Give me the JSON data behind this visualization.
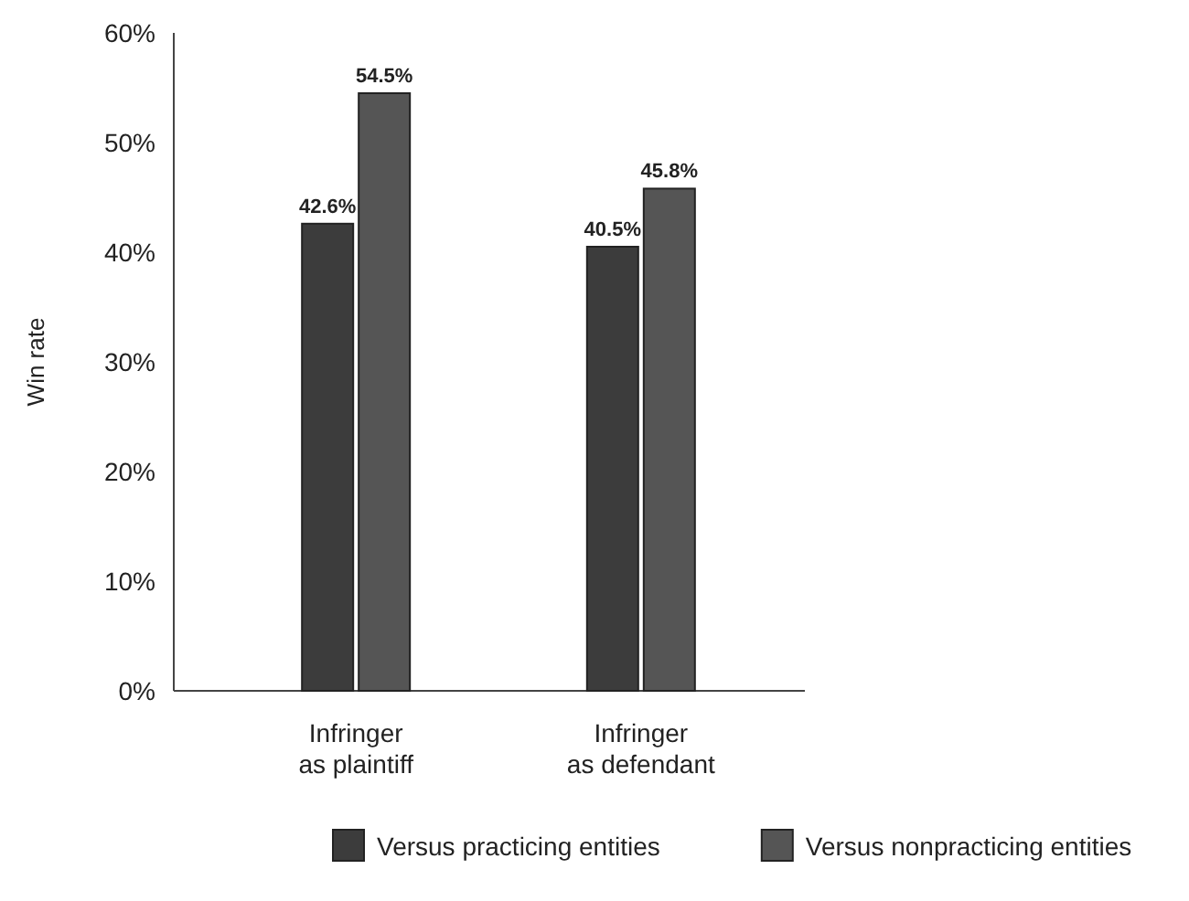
{
  "chart_data": {
    "type": "bar",
    "ylabel": "Win rate",
    "categories": [
      "Infringer\nas plaintiff",
      "Infringer\nas defendant"
    ],
    "series": [
      {
        "name": "Versus practicing entities",
        "color": "#3c3c3c",
        "values": [
          42.6,
          40.5
        ]
      },
      {
        "name": "Versus nonpracticing entities",
        "color": "#555555",
        "values": [
          54.5,
          45.8
        ]
      }
    ],
    "ylim": [
      0,
      60
    ],
    "yticks": [
      {
        "value": 0,
        "label": "0%"
      },
      {
        "value": 10,
        "label": "10%"
      },
      {
        "value": 20,
        "label": "20%"
      },
      {
        "value": 30,
        "label": "30%"
      },
      {
        "value": 40,
        "label": "40%"
      },
      {
        "value": 50,
        "label": "50%"
      },
      {
        "value": 60,
        "label": "60%"
      }
    ],
    "value_labels": [
      [
        "42.6%",
        "40.5%"
      ],
      [
        "54.5%",
        "45.8%"
      ]
    ],
    "legend": "bottom",
    "grid": false
  }
}
